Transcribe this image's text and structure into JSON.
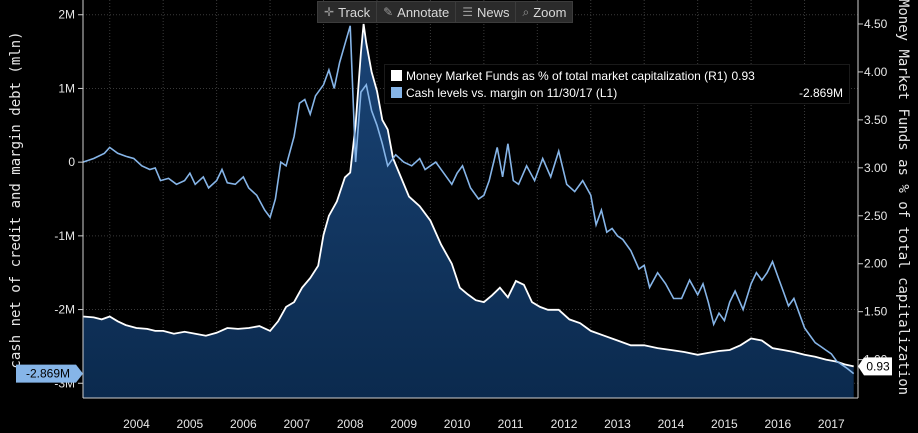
{
  "toolbar": {
    "track": "Track",
    "annotate": "Annotate",
    "news": "News",
    "zoom": "Zoom"
  },
  "legend": {
    "r1_label": "Money Market Funds as % of total market capitalization (R1)",
    "r1_value": "0.93",
    "l1_label": "Cash levels vs. margin  on 11/30/17 (L1)",
    "l1_value": "-2.869M"
  },
  "colors": {
    "background": "#000000",
    "money_market_line": "#ffffff",
    "money_market_fill": "#0b2a4e",
    "cash_line": "#86b5e8",
    "grid": "#3a3a3a"
  },
  "chart_data": {
    "type": "line",
    "title": "",
    "xlabel": "",
    "ylabel_left": "cash net of credit and margin debt (mln)",
    "ylabel_right": "Money Market Funds as % of total capitalization",
    "x_ticks": [
      "2004",
      "2005",
      "2006",
      "2007",
      "2008",
      "2009",
      "2010",
      "2011",
      "2012",
      "2013",
      "2014",
      "2015",
      "2016",
      "2017"
    ],
    "xlim": [
      2003.5,
      2018.0
    ],
    "y_left": {
      "ticks": [
        "2M",
        "1M",
        "0",
        "-1M",
        "-2M",
        "-3M"
      ],
      "tick_values": [
        2,
        1,
        0,
        -1,
        -2,
        -3
      ],
      "range": [
        -3.2,
        2.2
      ],
      "units": "M"
    },
    "y_right": {
      "ticks": [
        "4.50",
        "4.00",
        "3.50",
        "3.00",
        "2.50",
        "2.00",
        "1.50",
        "1.00"
      ],
      "tick_values": [
        4.5,
        4.0,
        3.5,
        3.0,
        2.5,
        2.0,
        1.5,
        1.0
      ],
      "range": [
        0.6,
        4.75
      ]
    },
    "current_labels": {
      "left": "-2.869M",
      "right": "0.93"
    },
    "series": [
      {
        "name": "Cash levels vs. margin  on 11/30/17 (L1)",
        "axis": "left",
        "style": "line",
        "x": [
          2003.5,
          2003.7,
          2003.9,
          2004.0,
          2004.15,
          2004.3,
          2004.45,
          2004.6,
          2004.75,
          2004.85,
          2004.95,
          2005.1,
          2005.25,
          2005.4,
          2005.5,
          2005.6,
          2005.75,
          2005.85,
          2006.0,
          2006.1,
          2006.2,
          2006.35,
          2006.5,
          2006.6,
          2006.75,
          2006.9,
          2007.0,
          2007.1,
          2007.2,
          2007.3,
          2007.45,
          2007.55,
          2007.65,
          2007.75,
          2007.85,
          2008.0,
          2008.1,
          2008.2,
          2008.3,
          2008.4,
          2008.5,
          2008.6,
          2008.7,
          2008.8,
          2008.9,
          2009.0,
          2009.1,
          2009.2,
          2009.35,
          2009.5,
          2009.65,
          2009.8,
          2009.9,
          2010.0,
          2010.1,
          2010.25,
          2010.4,
          2010.5,
          2010.6,
          2010.75,
          2010.9,
          2011.0,
          2011.1,
          2011.25,
          2011.35,
          2011.45,
          2011.55,
          2011.65,
          2011.8,
          2011.95,
          2012.1,
          2012.25,
          2012.4,
          2012.55,
          2012.7,
          2012.85,
          2013.0,
          2013.1,
          2013.2,
          2013.3,
          2013.4,
          2013.5,
          2013.6,
          2013.75,
          2013.9,
          2014.0,
          2014.1,
          2014.25,
          2014.4,
          2014.55,
          2014.7,
          2014.85,
          2015.0,
          2015.1,
          2015.2,
          2015.3,
          2015.4,
          2015.5,
          2015.6,
          2015.7,
          2015.85,
          2016.0,
          2016.1,
          2016.2,
          2016.3,
          2016.4,
          2016.5,
          2016.6,
          2016.7,
          2016.8,
          2016.9,
          2017.0,
          2017.1,
          2017.2,
          2017.3,
          2017.4,
          2017.5,
          2017.6,
          2017.7,
          2017.8,
          2017.92
        ],
        "y": [
          0.0,
          0.05,
          0.12,
          0.2,
          0.12,
          0.08,
          0.05,
          -0.05,
          -0.1,
          -0.08,
          -0.25,
          -0.22,
          -0.3,
          -0.25,
          -0.15,
          -0.3,
          -0.2,
          -0.35,
          -0.25,
          -0.1,
          -0.28,
          -0.3,
          -0.2,
          -0.35,
          -0.45,
          -0.65,
          -0.75,
          -0.5,
          0.0,
          -0.05,
          0.35,
          0.8,
          0.85,
          0.65,
          0.9,
          1.05,
          1.25,
          1.0,
          1.35,
          1.6,
          1.85,
          0.0,
          0.95,
          1.05,
          0.7,
          0.5,
          0.25,
          -0.05,
          0.1,
          0.0,
          -0.05,
          0.05,
          -0.1,
          -0.05,
          0.0,
          -0.15,
          -0.3,
          -0.15,
          -0.05,
          -0.35,
          -0.5,
          -0.45,
          -0.25,
          0.2,
          -0.2,
          0.25,
          -0.25,
          -0.3,
          -0.05,
          -0.25,
          0.05,
          -0.2,
          0.15,
          -0.3,
          -0.4,
          -0.25,
          -0.45,
          -0.85,
          -0.65,
          -0.95,
          -0.9,
          -1.0,
          -1.05,
          -1.2,
          -1.45,
          -1.4,
          -1.7,
          -1.5,
          -1.65,
          -1.85,
          -1.85,
          -1.6,
          -1.8,
          -1.65,
          -1.9,
          -2.2,
          -2.05,
          -2.15,
          -1.9,
          -1.75,
          -2.0,
          -1.65,
          -1.5,
          -1.6,
          -1.5,
          -1.35,
          -1.55,
          -1.75,
          -1.95,
          -1.85,
          -2.05,
          -2.25,
          -2.35,
          -2.45,
          -2.5,
          -2.55,
          -2.6,
          -2.7,
          -2.75,
          -2.8,
          -2.869
        ]
      },
      {
        "name": "Money Market Funds as % of total market capitalization (R1)",
        "axis": "right",
        "style": "area",
        "x": [
          2003.5,
          2003.7,
          2003.85,
          2004.0,
          2004.15,
          2004.3,
          2004.5,
          2004.7,
          2004.85,
          2005.0,
          2005.2,
          2005.4,
          2005.6,
          2005.8,
          2006.0,
          2006.2,
          2006.4,
          2006.6,
          2006.8,
          2007.0,
          2007.15,
          2007.3,
          2007.45,
          2007.6,
          2007.75,
          2007.9,
          2008.0,
          2008.1,
          2008.25,
          2008.4,
          2008.5,
          2008.6,
          2008.7,
          2008.75,
          2008.8,
          2008.9,
          2009.0,
          2009.1,
          2009.2,
          2009.3,
          2009.45,
          2009.6,
          2009.8,
          2010.0,
          2010.2,
          2010.4,
          2010.55,
          2010.7,
          2010.85,
          2011.0,
          2011.15,
          2011.3,
          2011.45,
          2011.6,
          2011.75,
          2011.9,
          2012.05,
          2012.2,
          2012.4,
          2012.6,
          2012.8,
          2013.0,
          2013.25,
          2013.5,
          2013.75,
          2014.0,
          2014.25,
          2014.5,
          2014.75,
          2015.0,
          2015.2,
          2015.4,
          2015.6,
          2015.8,
          2016.0,
          2016.2,
          2016.4,
          2016.6,
          2016.8,
          2017.0,
          2017.2,
          2017.4,
          2017.6,
          2017.75,
          2017.92
        ],
        "y": [
          1.45,
          1.44,
          1.42,
          1.45,
          1.4,
          1.36,
          1.33,
          1.32,
          1.3,
          1.3,
          1.27,
          1.29,
          1.27,
          1.25,
          1.28,
          1.33,
          1.32,
          1.33,
          1.35,
          1.3,
          1.4,
          1.55,
          1.6,
          1.75,
          1.85,
          1.98,
          2.3,
          2.5,
          2.65,
          2.9,
          2.95,
          3.45,
          4.2,
          4.5,
          4.3,
          4.0,
          3.8,
          3.5,
          3.4,
          3.1,
          2.9,
          2.7,
          2.6,
          2.45,
          2.2,
          2.0,
          1.75,
          1.68,
          1.62,
          1.6,
          1.67,
          1.75,
          1.65,
          1.82,
          1.78,
          1.6,
          1.55,
          1.52,
          1.52,
          1.42,
          1.38,
          1.3,
          1.25,
          1.2,
          1.15,
          1.15,
          1.12,
          1.1,
          1.08,
          1.05,
          1.07,
          1.09,
          1.1,
          1.15,
          1.22,
          1.2,
          1.12,
          1.1,
          1.08,
          1.05,
          1.03,
          1.0,
          0.98,
          0.95,
          0.93
        ]
      }
    ]
  }
}
